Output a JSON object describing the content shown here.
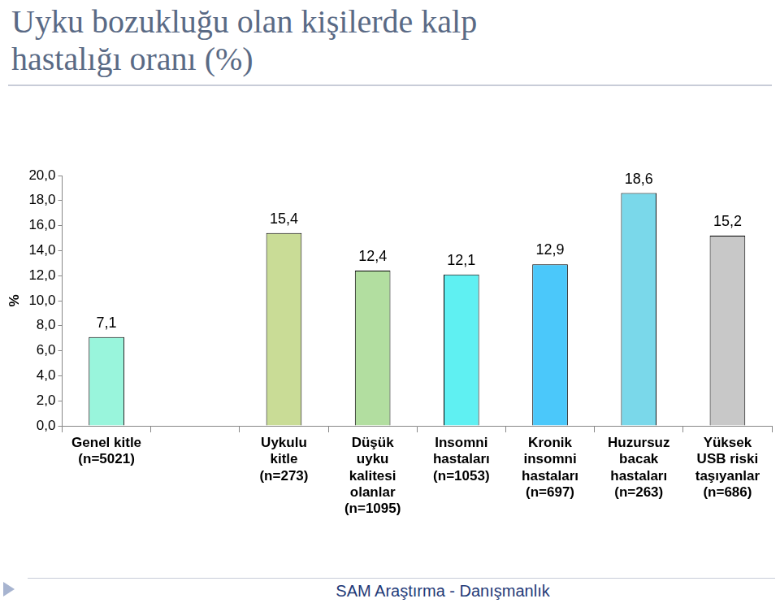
{
  "chart_data": {
    "type": "bar",
    "title": "Uyku bozukluğu olan kişilerde kalp\nhastalığı oranı (%)",
    "y_label": "%",
    "footer": "SAM Araştırma - Danışmanlık",
    "categories": [
      "Genel kitle\n(n=5021)",
      null,
      "Uykulu\nkitle\n(n=273)",
      "Düşük\nuyku\nkalitesi\nolanlar\n(n=1095)",
      "Insomni\nhastaları\n(n=1053)",
      "Kronik\ninsomni\nhastaları\n(n=697)",
      "Huzursuz\nbacak\nhastaları\n(n=263)",
      "Yüksek\nUSB riski\ntaşıyanlar\n(n=686)"
    ],
    "values": [
      7.1,
      null,
      15.4,
      12.4,
      12.1,
      12.9,
      18.6,
      15.2
    ],
    "value_labels": [
      "7,1",
      null,
      "15,4",
      "12,4",
      "12,1",
      "12,9",
      "18,6",
      "15,2"
    ],
    "colors": [
      "#99f5dc",
      null,
      "#c9dc96",
      "#b2dea0",
      "#5ff0f2",
      "#4bc8fa",
      "#7ad8ea",
      "#c8c8c8"
    ],
    "ylim": [
      0,
      20
    ],
    "yticks": [
      {
        "value": 0,
        "label": "0,0"
      },
      {
        "value": 2,
        "label": "2,0"
      },
      {
        "value": 4,
        "label": "4,0"
      },
      {
        "value": 6,
        "label": "6,0"
      },
      {
        "value": 8,
        "label": "8,0"
      },
      {
        "value": 10,
        "label": "10,0"
      },
      {
        "value": 12,
        "label": "12,0"
      },
      {
        "value": 14,
        "label": "14,0"
      },
      {
        "value": 16,
        "label": "16,0"
      },
      {
        "value": 18,
        "label": "18,0"
      },
      {
        "value": 20,
        "label": "20,0"
      }
    ],
    "grid": false,
    "data_labels": true
  }
}
